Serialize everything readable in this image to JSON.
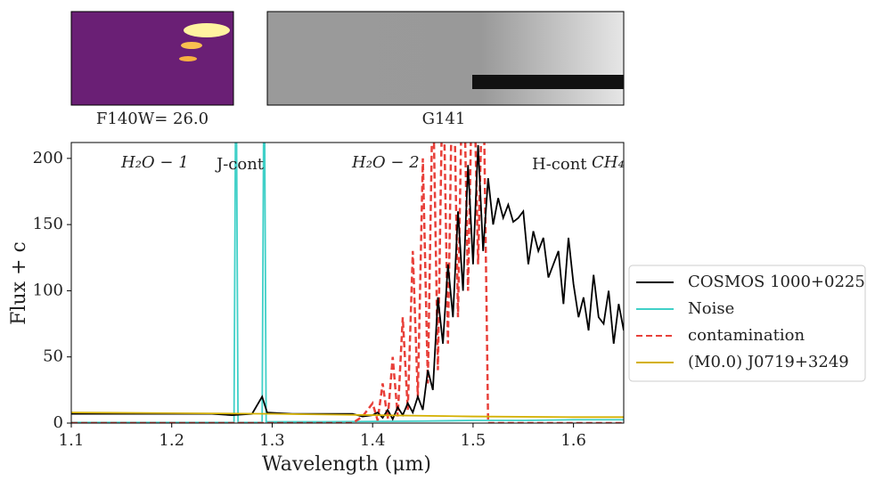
{
  "chart_data": {
    "type": "line",
    "xlabel": "Wavelength (μm)",
    "ylabel": "Flux + c",
    "xlim": [
      1.1,
      1.65
    ],
    "ylim": [
      0,
      212
    ],
    "xticks": [
      1.1,
      1.2,
      1.3,
      1.4,
      1.5,
      1.6
    ],
    "yticks": [
      0,
      50,
      100,
      150,
      200
    ],
    "legend": "right",
    "images": [
      {
        "label": "F140W= 26.0"
      },
      {
        "label": "G141"
      }
    ],
    "annotations": [
      "H₂O − 1",
      "J-cont",
      "H₂O − 2",
      "H-cont",
      "CH₄"
    ],
    "series": [
      {
        "name": "COSMOS 1000+0225",
        "color": "#000000",
        "style": "solid",
        "x": [
          1.1,
          1.12,
          1.14,
          1.16,
          1.18,
          1.2,
          1.22,
          1.24,
          1.26,
          1.28,
          1.29,
          1.295,
          1.32,
          1.35,
          1.38,
          1.39,
          1.4,
          1.405,
          1.41,
          1.415,
          1.42,
          1.425,
          1.43,
          1.435,
          1.44,
          1.445,
          1.45,
          1.455,
          1.46,
          1.465,
          1.47,
          1.475,
          1.48,
          1.485,
          1.49,
          1.495,
          1.5,
          1.505,
          1.51,
          1.515,
          1.52,
          1.525,
          1.53,
          1.535,
          1.54,
          1.545,
          1.55,
          1.555,
          1.56,
          1.565,
          1.57,
          1.575,
          1.58,
          1.585,
          1.59,
          1.595,
          1.6,
          1.605,
          1.61,
          1.615,
          1.62,
          1.625,
          1.63,
          1.635,
          1.64,
          1.645,
          1.65
        ],
        "values": [
          7,
          7,
          7,
          7,
          7,
          7,
          7,
          7,
          6,
          7,
          20,
          8,
          7,
          7,
          7,
          5,
          6,
          8,
          4,
          10,
          3,
          12,
          6,
          15,
          8,
          20,
          10,
          40,
          25,
          95,
          60,
          120,
          80,
          160,
          100,
          195,
          120,
          210,
          130,
          185,
          150,
          170,
          155,
          165,
          152,
          155,
          160,
          120,
          145,
          130,
          140,
          110,
          120,
          130,
          90,
          140,
          105,
          80,
          95,
          70,
          112,
          80,
          75,
          100,
          60,
          90,
          70
        ]
      },
      {
        "name": "Noise",
        "color": "#40d0c8",
        "style": "solid",
        "x": [
          1.1,
          1.262,
          1.264,
          1.266,
          1.29,
          1.292,
          1.294,
          1.35,
          1.45,
          1.5,
          1.55,
          1.6,
          1.65
        ],
        "values": [
          0.5,
          0.5,
          300,
          0.5,
          0.5,
          300,
          1,
          1,
          1.5,
          2,
          2,
          2.5,
          2.5
        ]
      },
      {
        "name": "contamination",
        "color": "#e8403a",
        "style": "dashed",
        "x": [
          1.1,
          1.2,
          1.3,
          1.38,
          1.39,
          1.4,
          1.405,
          1.41,
          1.415,
          1.42,
          1.425,
          1.43,
          1.435,
          1.44,
          1.445,
          1.45,
          1.455,
          1.46,
          1.465,
          1.47,
          1.475,
          1.48,
          1.485,
          1.49,
          1.495,
          1.5,
          1.505,
          1.51,
          1.515,
          1.55,
          1.6,
          1.65
        ],
        "values": [
          0,
          0,
          0,
          0,
          5,
          15,
          2,
          30,
          3,
          50,
          5,
          80,
          10,
          130,
          20,
          200,
          30,
          260,
          40,
          280,
          60,
          300,
          80,
          300,
          100,
          300,
          120,
          280,
          0,
          0,
          0,
          0
        ]
      },
      {
        "name": "(M0.0) J0719+3249",
        "color": "#d4b000",
        "style": "solid",
        "x": [
          1.1,
          1.2,
          1.3,
          1.4,
          1.5,
          1.6,
          1.65
        ],
        "values": [
          8,
          7.5,
          7,
          6,
          5,
          4.5,
          4.5
        ]
      }
    ]
  }
}
